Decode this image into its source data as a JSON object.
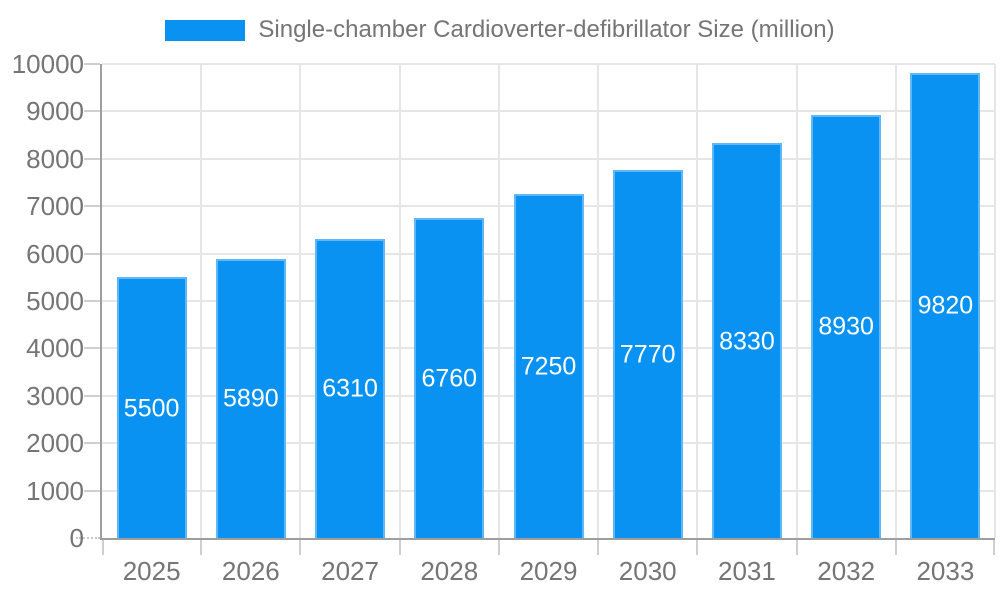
{
  "chart_data": {
    "type": "bar",
    "title": "Single-chamber Cardioverter-defibrillator Size (million)",
    "categories": [
      "2025",
      "2026",
      "2027",
      "2028",
      "2029",
      "2030",
      "2031",
      "2032",
      "2033"
    ],
    "values": [
      5500,
      5890,
      6310,
      6760,
      7250,
      7770,
      8330,
      8930,
      9820
    ],
    "xlabel": "",
    "ylabel": "",
    "ylim": [
      0,
      10000
    ],
    "y_ticks": [
      0,
      1000,
      2000,
      3000,
      4000,
      5000,
      6000,
      7000,
      8000,
      9000,
      10000
    ],
    "grid": true,
    "legend_position": "top",
    "bar_labels_inside": true
  },
  "colors": {
    "bar": "#0992f2",
    "bar_label": "#ffffff",
    "grid": "#e6e6e6",
    "axis": "#9e9e9e",
    "tick": "#cfcfcf",
    "text": "#757575",
    "background": "#ffffff"
  }
}
